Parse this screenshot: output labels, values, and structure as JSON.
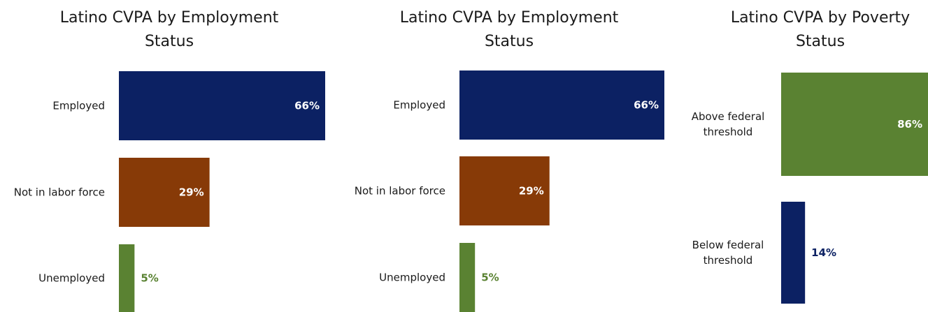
{
  "chart_data": [
    {
      "type": "bar",
      "orientation": "horizontal",
      "title": "Latino CVPA by Employment Status",
      "categories": [
        "Employed",
        "Not in labor force",
        "Unemployed"
      ],
      "values": [
        66,
        29,
        5
      ],
      "value_labels": [
        "66%",
        "29%",
        "5%"
      ],
      "colors": [
        "#0c2163",
        "#873a07",
        "#5a8232"
      ],
      "xlim": [
        0,
        66
      ],
      "grid": false
    },
    {
      "type": "bar",
      "orientation": "horizontal",
      "title": "Latino CVPA by Employment Status",
      "categories": [
        "Employed",
        "Not in labor force",
        "Unemployed"
      ],
      "values": [
        66,
        29,
        5
      ],
      "value_labels": [
        "66%",
        "29%",
        "5%"
      ],
      "colors": [
        "#0c2163",
        "#873a07",
        "#5a8232"
      ],
      "xlim": [
        0,
        66
      ],
      "grid": false
    },
    {
      "type": "bar",
      "orientation": "horizontal",
      "title": "Latino CVPA by Poverty Status",
      "categories": [
        "Above federal threshold",
        "Below federal threshold"
      ],
      "values": [
        86,
        14
      ],
      "value_labels": [
        "86%",
        "14%"
      ],
      "colors": [
        "#5a8232",
        "#0c2163"
      ],
      "xlim": [
        0,
        86
      ],
      "grid": false
    }
  ]
}
